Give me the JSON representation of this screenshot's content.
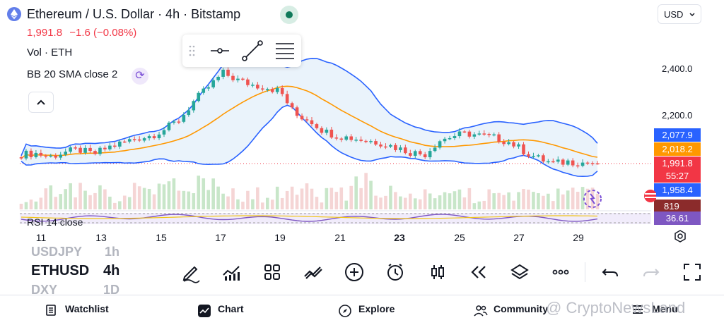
{
  "header": {
    "title": "Ethereum / U.S. Dollar · 4h · Bitstamp",
    "price": "1,991.8",
    "change": "−1.6 (−0.08%)",
    "volume_label": "Vol · ETH",
    "bb_label": "BB 20 SMA close 2",
    "currency": "USD"
  },
  "y_axis": {
    "ticks": [
      "2,400.0",
      "2,200.0"
    ]
  },
  "price_tags": {
    "upper_band": "2,077.9",
    "basis": "2,018.2",
    "last_price": "1,991.8",
    "countdown": "55:27",
    "lower_band": "1,958.4",
    "volume": "819",
    "rsi": "36.61"
  },
  "x_axis": {
    "ticks": [
      "11",
      "13",
      "15",
      "17",
      "19",
      "21",
      "23",
      "25",
      "27",
      "29"
    ]
  },
  "rsi_label": "RSI 14 close",
  "symbols": {
    "prev": "USDJPY",
    "current": "ETHUSD",
    "next": "DXY",
    "tf_prev": "1h",
    "tf_current": "4h",
    "tf_next": "1D"
  },
  "bottom_nav": {
    "watchlist": "Watchlist",
    "chart": "Chart",
    "explore": "Explore",
    "community": "Community",
    "menu": "Menu"
  },
  "watermark": "@ CryptoNewsLand",
  "colors": {
    "up": "#26a69a",
    "down": "#ef5350",
    "band": "#2962ff",
    "basis": "#ff9800",
    "rsi": "#7e57c2"
  },
  "chart_data": {
    "type": "candlestick",
    "symbol": "ETHUSD",
    "interval": "4h",
    "y_ticks": [
      2400,
      2200
    ],
    "x_ticks": [
      "11",
      "13",
      "15",
      "17",
      "19",
      "21",
      "23",
      "25",
      "27",
      "29"
    ],
    "close_path": [
      2030,
      2035,
      2020,
      2040,
      2050,
      2030,
      2060,
      2080,
      2100,
      2110,
      2140,
      2180,
      2260,
      2320,
      2380,
      2350,
      2330,
      2320,
      2300,
      2200,
      2180,
      2130,
      2110,
      2100,
      2090,
      2080,
      2060,
      2040,
      2030,
      2090,
      2110,
      2120,
      2110,
      2100,
      2080,
      2040,
      2010,
      1990,
      2000,
      1995,
      1992
    ],
    "upper_band_last": 2077.9,
    "basis_last": 2018.2,
    "lower_band_last": 1958.4,
    "last_price": 1991.8,
    "rsi_last": 36.61,
    "volume_last": 819
  }
}
